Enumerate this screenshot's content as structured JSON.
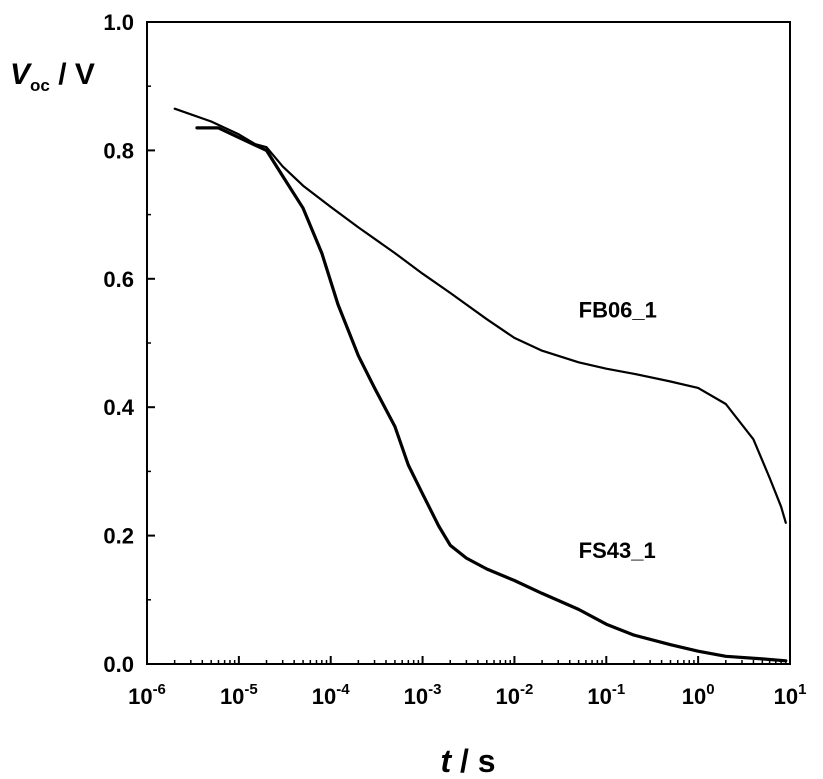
{
  "chart_data": {
    "type": "line",
    "title": "",
    "xlabel": {
      "symbol": "t",
      "unit": " / s"
    },
    "ylabel": {
      "symbol": "V",
      "subscript": "oc",
      "unit": " / V"
    },
    "x_scale": "log",
    "xlim": [
      1e-06,
      10
    ],
    "ylim": [
      0.0,
      1.0
    ],
    "x_ticks": [
      {
        "value": 1e-06,
        "base": "10",
        "exp": "-6"
      },
      {
        "value": 1e-05,
        "base": "10",
        "exp": "-5"
      },
      {
        "value": 0.0001,
        "base": "10",
        "exp": "-4"
      },
      {
        "value": 0.001,
        "base": "10",
        "exp": "-3"
      },
      {
        "value": 0.01,
        "base": "10",
        "exp": "-2"
      },
      {
        "value": 0.1,
        "base": "10",
        "exp": "-1"
      },
      {
        "value": 1,
        "base": "10",
        "exp": "0"
      },
      {
        "value": 10,
        "base": "10",
        "exp": "1"
      }
    ],
    "y_ticks": [
      {
        "value": 0.0,
        "label": "0.0"
      },
      {
        "value": 0.2,
        "label": "0.2"
      },
      {
        "value": 0.4,
        "label": "0.4"
      },
      {
        "value": 0.6,
        "label": "0.6"
      },
      {
        "value": 0.8,
        "label": "0.8"
      },
      {
        "value": 1.0,
        "label": "1.0"
      }
    ],
    "grid": false,
    "legend": "none",
    "series": [
      {
        "name": "FB06_1",
        "label_at": {
          "x": 0.05,
          "y": 0.54
        },
        "points": [
          [
            2e-06,
            0.865
          ],
          [
            5e-06,
            0.845
          ],
          [
            1e-05,
            0.825
          ],
          [
            1.5e-05,
            0.81
          ],
          [
            2e-05,
            0.805
          ],
          [
            3e-05,
            0.775
          ],
          [
            5e-05,
            0.745
          ],
          [
            0.0001,
            0.712
          ],
          [
            0.0002,
            0.68
          ],
          [
            0.0005,
            0.64
          ],
          [
            0.001,
            0.608
          ],
          [
            0.002,
            0.578
          ],
          [
            0.005,
            0.537
          ],
          [
            0.01,
            0.508
          ],
          [
            0.02,
            0.488
          ],
          [
            0.05,
            0.47
          ],
          [
            0.1,
            0.46
          ],
          [
            0.2,
            0.452
          ],
          [
            0.5,
            0.44
          ],
          [
            1,
            0.43
          ],
          [
            2,
            0.405
          ],
          [
            4,
            0.35
          ],
          [
            6,
            0.29
          ],
          [
            8,
            0.245
          ],
          [
            9,
            0.22
          ]
        ]
      },
      {
        "name": "FS43_1",
        "label_at": {
          "x": 0.05,
          "y": 0.165
        },
        "points": [
          [
            3.5e-06,
            0.835
          ],
          [
            6e-06,
            0.835
          ],
          [
            1e-05,
            0.82
          ],
          [
            2e-05,
            0.8
          ],
          [
            3e-05,
            0.76
          ],
          [
            5e-05,
            0.71
          ],
          [
            8e-05,
            0.64
          ],
          [
            0.00012,
            0.56
          ],
          [
            0.0002,
            0.48
          ],
          [
            0.0003,
            0.43
          ],
          [
            0.0005,
            0.37
          ],
          [
            0.0007,
            0.31
          ],
          [
            0.001,
            0.265
          ],
          [
            0.0015,
            0.215
          ],
          [
            0.002,
            0.185
          ],
          [
            0.003,
            0.165
          ],
          [
            0.005,
            0.148
          ],
          [
            0.01,
            0.13
          ],
          [
            0.02,
            0.11
          ],
          [
            0.05,
            0.085
          ],
          [
            0.1,
            0.062
          ],
          [
            0.2,
            0.045
          ],
          [
            0.5,
            0.03
          ],
          [
            1,
            0.02
          ],
          [
            2,
            0.012
          ],
          [
            5,
            0.008
          ],
          [
            9,
            0.005
          ]
        ]
      }
    ]
  }
}
